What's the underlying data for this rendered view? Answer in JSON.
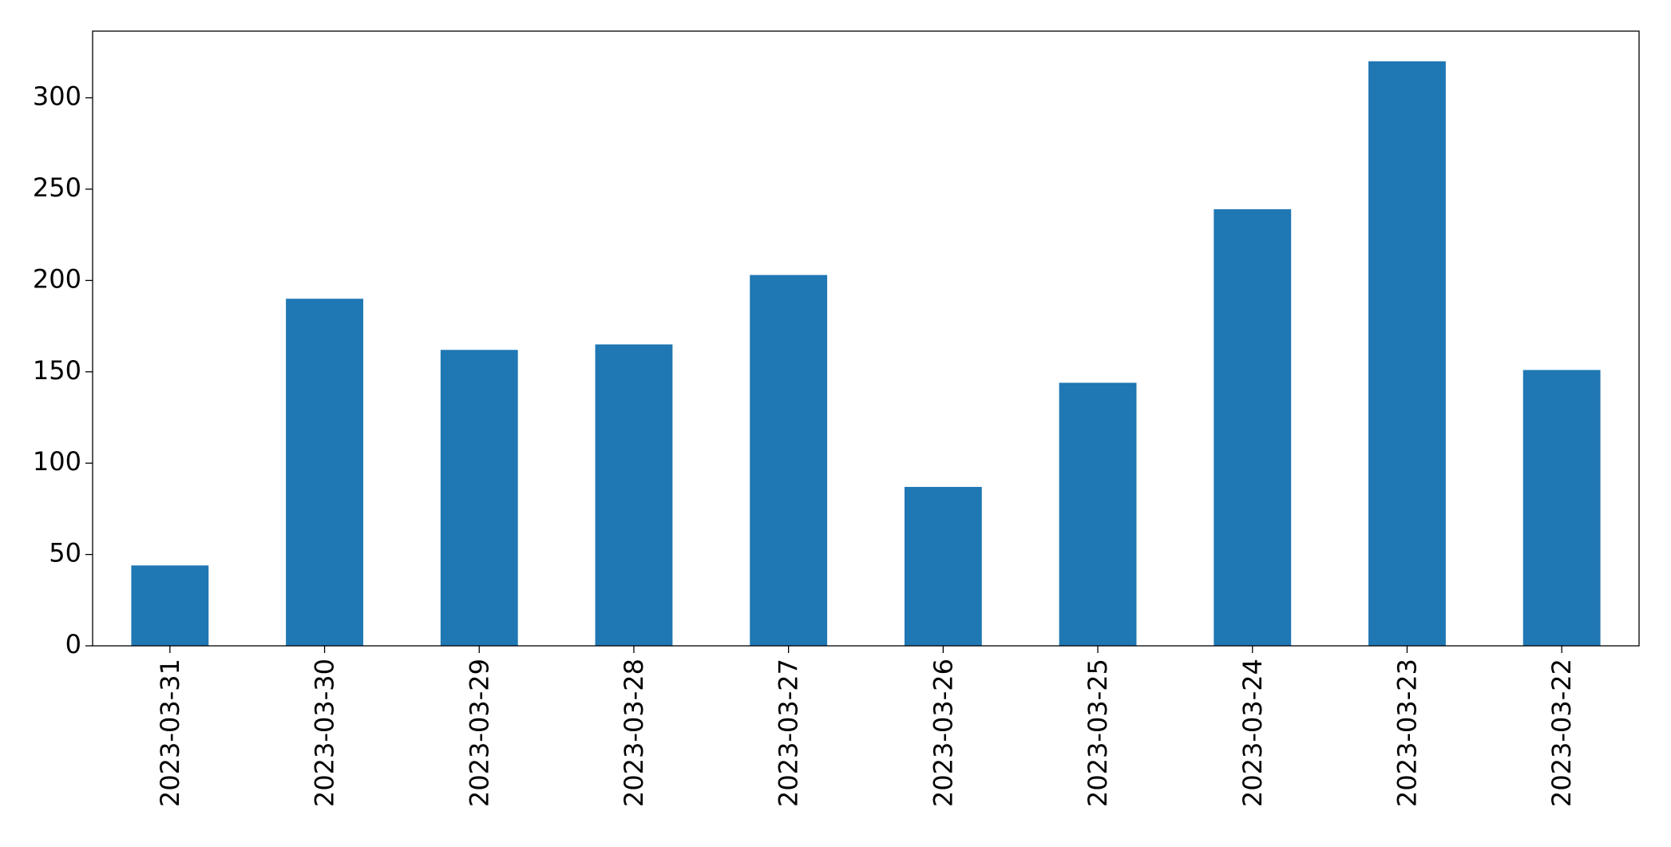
{
  "chart_data": {
    "type": "bar",
    "categories": [
      "2023-03-31",
      "2023-03-30",
      "2023-03-29",
      "2023-03-28",
      "2023-03-27",
      "2023-03-26",
      "2023-03-25",
      "2023-03-24",
      "2023-03-23",
      "2023-03-22"
    ],
    "values": [
      44,
      190,
      162,
      165,
      203,
      87,
      144,
      239,
      320,
      151
    ],
    "color": "#1f77b4",
    "ylim": [
      0,
      336.5
    ],
    "yticks": [
      0,
      50,
      100,
      150,
      200,
      250,
      300
    ],
    "grid": false
  }
}
